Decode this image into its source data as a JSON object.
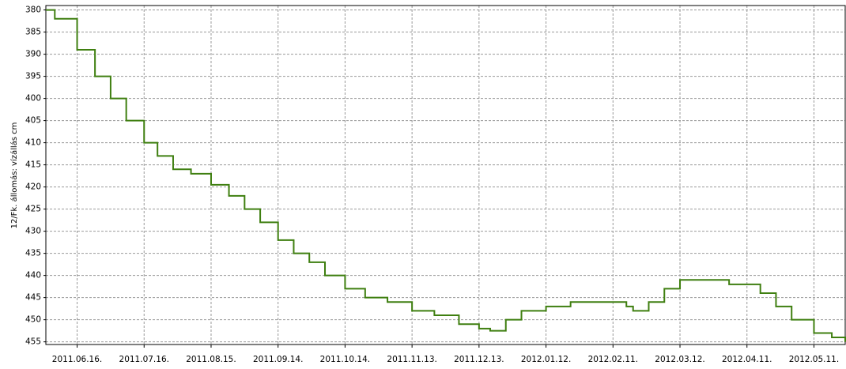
{
  "chart_data": {
    "type": "line",
    "step": true,
    "ylabel": "12/Fk. állomás: vízállás cm",
    "x": [
      "2011-06-02",
      "2011-06-06",
      "2011-06-16",
      "2011-06-24",
      "2011-07-01",
      "2011-07-08",
      "2011-07-16",
      "2011-07-22",
      "2011-07-29",
      "2011-08-06",
      "2011-08-15",
      "2011-08-23",
      "2011-08-30",
      "2011-09-06",
      "2011-09-14",
      "2011-09-21",
      "2011-09-28",
      "2011-10-05",
      "2011-10-14",
      "2011-10-23",
      "2011-11-02",
      "2011-11-13",
      "2011-11-23",
      "2011-12-04",
      "2011-12-13",
      "2011-12-18",
      "2011-12-25",
      "2012-01-01",
      "2012-01-12",
      "2012-01-23",
      "2012-02-11",
      "2012-02-17",
      "2012-02-20",
      "2012-02-27",
      "2012-03-05",
      "2012-03-12",
      "2012-03-27",
      "2012-04-03",
      "2012-04-11",
      "2012-04-17",
      "2012-04-24",
      "2012-05-01",
      "2012-05-11",
      "2012-05-19",
      "2012-05-25"
    ],
    "series": [
      {
        "color": "#3f7f10",
        "values": [
          380,
          382,
          389,
          395,
          400,
          405,
          410,
          413,
          416,
          417,
          419.5,
          422,
          425,
          428,
          432,
          435,
          437,
          440,
          443,
          445,
          446,
          448,
          449,
          451,
          452,
          452.5,
          450,
          448,
          447,
          446,
          446,
          447,
          448,
          446,
          443,
          441,
          441,
          442,
          442,
          444,
          447,
          450,
          453,
          454,
          455
        ]
      }
    ],
    "xlim": [
      "2011-06-02",
      "2012-05-25"
    ],
    "xticks": [
      {
        "value": "2011-06-16",
        "label": "2011.06.16."
      },
      {
        "value": "2011-07-16",
        "label": "2011.07.16."
      },
      {
        "value": "2011-08-15",
        "label": "2011.08.15."
      },
      {
        "value": "2011-09-14",
        "label": "2011.09.14."
      },
      {
        "value": "2011-10-14",
        "label": "2011.10.14."
      },
      {
        "value": "2011-11-13",
        "label": "2011.11.13."
      },
      {
        "value": "2011-12-13",
        "label": "2011.12.13."
      },
      {
        "value": "2012-01-12",
        "label": "2012.01.12."
      },
      {
        "value": "2012-02-11",
        "label": "2012.02.11."
      },
      {
        "value": "2012-03-12",
        "label": "2012.03.12."
      },
      {
        "value": "2012-04-11",
        "label": "2012.04.11."
      },
      {
        "value": "2012-05-11",
        "label": "2012.05.11."
      }
    ],
    "ylim": [
      379,
      455.6
    ],
    "yinverted": true,
    "yticks": [
      380,
      385,
      390,
      395,
      400,
      405,
      410,
      415,
      420,
      425,
      430,
      435,
      440,
      445,
      450,
      455
    ],
    "grid": true
  }
}
